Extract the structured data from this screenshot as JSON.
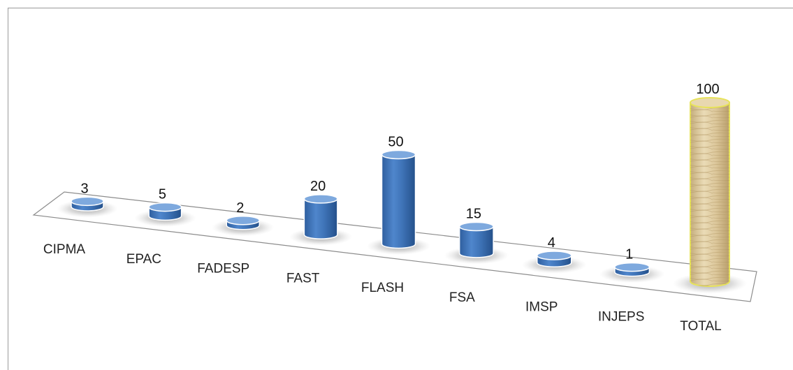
{
  "chart_data": {
    "type": "bar",
    "title": "",
    "xlabel": "",
    "ylabel": "",
    "categories": [
      "CIPMA",
      "EPAC",
      "FADESP",
      "FAST",
      "FLASH",
      "FSA",
      "IMSP",
      "INJEPS",
      "TOTAL"
    ],
    "values": [
      3,
      5,
      2,
      20,
      50,
      15,
      4,
      1,
      100
    ],
    "ylim": [
      0,
      100
    ],
    "grid": false,
    "legend": "none",
    "colors": {
      "bar": "#3f74b8",
      "bar_top": "#7ea9de",
      "total_bar": "#d9c79c",
      "total_outline": "#e7e35a"
    }
  }
}
